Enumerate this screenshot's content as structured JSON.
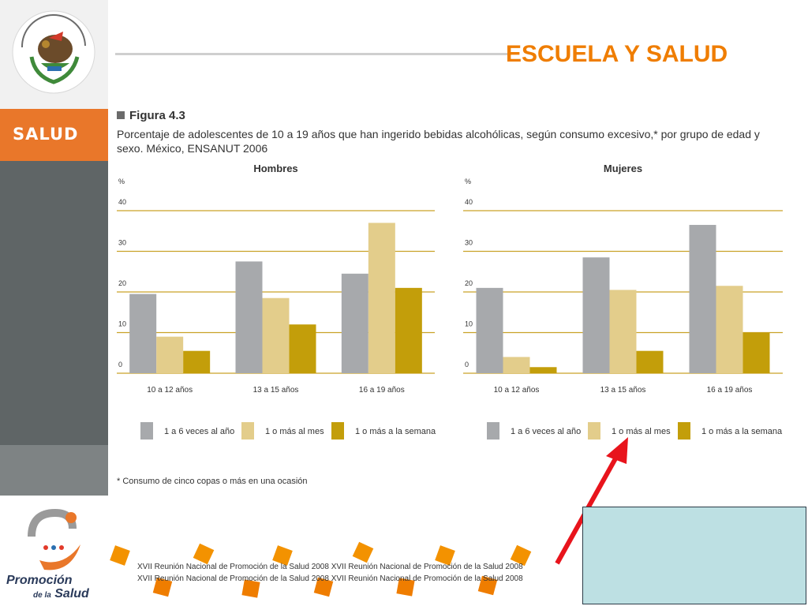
{
  "header": {
    "title": "ESCUELA Y SALUD"
  },
  "sidebar": {
    "label": "SALUD"
  },
  "figure": {
    "label": "Figura 4.3",
    "caption": "Porcentaje de adolescentes de 10 a 19 años que han ingerido bebidas alcohólicas, según consumo excesivo,* por grupo de edad y sexo. México, ENSANUT 2006",
    "footnote": "* Consumo de cinco copas o más en una ocasión"
  },
  "footer": {
    "lines": [
      "XVII Reunión Nacional de Promoción de la Salud 2008    XVII Reunión Nacional de Promoción de la Salud 2008",
      "XVII Reunión Nacional de Promoción de la Salud 2008    XVII Reunión Nacional de Promoción de la Salud 2008"
    ]
  },
  "logo": {
    "line1": "Promoción",
    "line2": "de la",
    "line3": "Salud"
  },
  "colors": {
    "accent": "#ef7d00",
    "series1": "#a7a9ac",
    "series2": "#e3cd8b",
    "series3": "#c39e0a",
    "gridline": "#c9a227",
    "arrow": "#e8141c"
  },
  "chart_data": [
    {
      "type": "bar",
      "title": "Hombres",
      "ylabel": "%",
      "ylim": [
        0,
        40
      ],
      "yticks": [
        "0",
        "10",
        "20",
        "30",
        "40"
      ],
      "categories": [
        "10 a 12 años",
        "13 a 15 años",
        "16 a 19 años"
      ],
      "series": [
        {
          "name": "1 a 6 veces al año",
          "values": [
            19.5,
            27.5,
            24.5
          ]
        },
        {
          "name": "1 o más al mes",
          "values": [
            9,
            18.5,
            37
          ]
        },
        {
          "name": "1 o más a la semana",
          "values": [
            5.5,
            12,
            21
          ]
        }
      ],
      "grid": true,
      "legend": "bottom"
    },
    {
      "type": "bar",
      "title": "Mujeres",
      "ylabel": "%",
      "ylim": [
        0,
        40
      ],
      "yticks": [
        "0",
        "10",
        "20",
        "30",
        "40"
      ],
      "categories": [
        "10 a 12 años",
        "13 a 15 años",
        "16 a 19 años"
      ],
      "series": [
        {
          "name": "1 a 6 veces al año",
          "values": [
            21,
            28.5,
            36.5
          ]
        },
        {
          "name": "1 o más al mes",
          "values": [
            4,
            20.5,
            21.5
          ]
        },
        {
          "name": "1 o más a la semana",
          "values": [
            1.5,
            5.5,
            10
          ]
        }
      ],
      "grid": true,
      "legend": "bottom"
    }
  ]
}
